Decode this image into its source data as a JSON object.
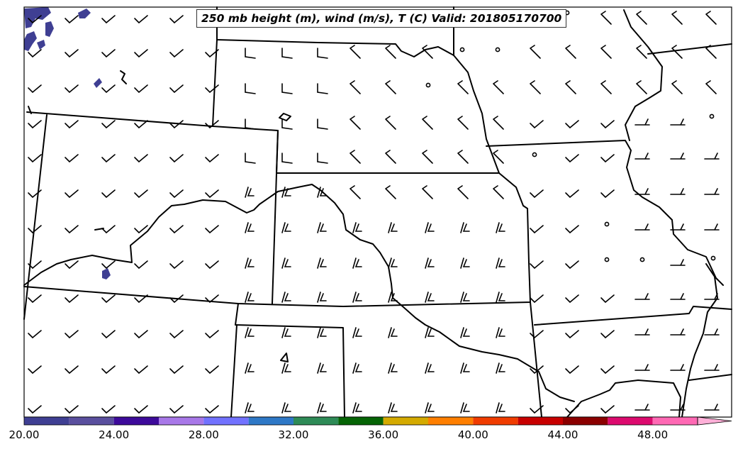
{
  "title": "250 mb height (m), wind (m/s), T (C) Valid: 201805170700",
  "colorbar": {
    "tick_labels": [
      "20.00",
      "24.00",
      "28.00",
      "32.00",
      "36.00",
      "40.00",
      "44.00",
      "48.00"
    ],
    "tick_values": [
      20,
      24,
      28,
      32,
      36,
      40,
      44,
      48
    ],
    "range": [
      20,
      52
    ],
    "step": 2,
    "extend": "max",
    "colors": [
      "#3f3f93",
      "#5a4f9e",
      "#3d0a9a",
      "#a878e8",
      "#7272ff",
      "#2e78c6",
      "#2e8b57",
      "#056405",
      "#d4aa00",
      "#ff7f00",
      "#f03c00",
      "#c80000",
      "#8b0000",
      "#dc0a6e",
      "#ff69b4",
      "#ffb0d8"
    ]
  },
  "map": {
    "region": "central United States",
    "shaded_temperature_color": "#3f3f93",
    "wind_barbs": "gridded"
  }
}
